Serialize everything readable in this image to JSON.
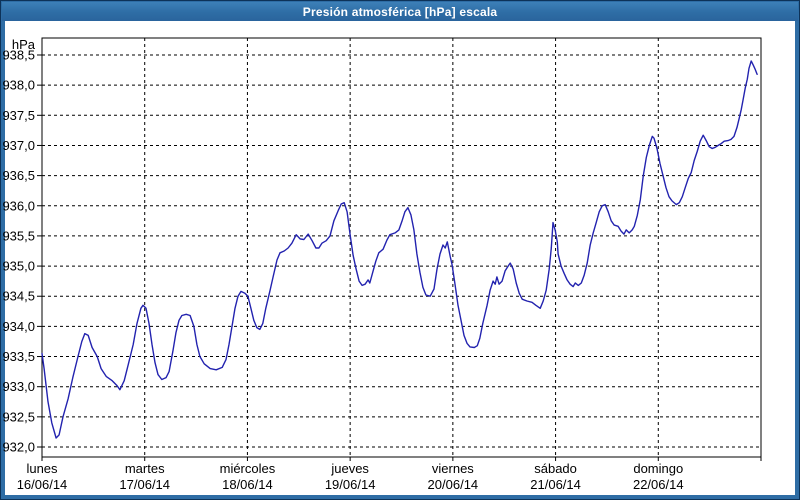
{
  "window": {
    "title": "Presión atmosférica [hPa] escala"
  },
  "colors": {
    "frame": "#2e6da5",
    "frame_outline": "#0d3258",
    "titlebar_text": "#ffffff",
    "plot_background": "#ffffff",
    "grid": "#000000",
    "axis_text": "#000000",
    "line": "#2323af"
  },
  "chart_data": {
    "type": "line",
    "title": "Presión atmosférica [hPa] escala",
    "y_unit_label": "hPa",
    "ylabel": "",
    "xlabel": "",
    "grid": "dashed",
    "legend": "none",
    "ylim": [
      931.83,
      938.78
    ],
    "y_tick_values": [
      938.5,
      938.0,
      937.5,
      937.0,
      936.5,
      936.0,
      935.5,
      935.0,
      934.5,
      934.0,
      933.5,
      933.0,
      932.5,
      932.0
    ],
    "y_tick_labels": [
      "938,5",
      "938,0",
      "937,5",
      "937,0",
      "936,5",
      "936,0",
      "935,5",
      "935,0",
      "934,5",
      "934,0",
      "933,5",
      "933,0",
      "932,5",
      "932,0"
    ],
    "x_total_hours": 168,
    "x_days": [
      {
        "day": "lunes",
        "date": "16/06/14"
      },
      {
        "day": "martes",
        "date": "17/06/14"
      },
      {
        "day": "miércoles",
        "date": "18/06/14"
      },
      {
        "day": "jueves",
        "date": "19/06/14"
      },
      {
        "day": "viernes",
        "date": "20/06/14"
      },
      {
        "day": "sábado",
        "date": "21/06/14"
      },
      {
        "day": "domingo",
        "date": "22/06/14"
      }
    ],
    "line_color": "#2323af",
    "series": [
      {
        "name": "Presión atmosférica",
        "unit": "hPa",
        "points": [
          [
            0,
            933.55
          ],
          [
            0.5,
            933.3
          ],
          [
            1.4,
            932.75
          ],
          [
            2.3,
            932.4
          ],
          [
            3.3,
            932.15
          ],
          [
            4,
            932.2
          ],
          [
            4.9,
            932.5
          ],
          [
            6.1,
            932.8
          ],
          [
            7.2,
            933.15
          ],
          [
            8.4,
            933.5
          ],
          [
            9.3,
            933.75
          ],
          [
            10,
            933.88
          ],
          [
            10.8,
            933.85
          ],
          [
            11.7,
            933.65
          ],
          [
            12.9,
            933.5
          ],
          [
            13.8,
            933.3
          ],
          [
            15,
            933.17
          ],
          [
            16.4,
            933.1
          ],
          [
            17.5,
            933.02
          ],
          [
            18.2,
            932.95
          ],
          [
            19.2,
            933.1
          ],
          [
            20.1,
            933.35
          ],
          [
            21.3,
            933.7
          ],
          [
            22.2,
            934.05
          ],
          [
            23.1,
            934.3
          ],
          [
            23.6,
            934.35
          ],
          [
            24.3,
            934.3
          ],
          [
            25,
            934.05
          ],
          [
            25.7,
            933.7
          ],
          [
            26.4,
            933.4
          ],
          [
            27.1,
            933.2
          ],
          [
            28,
            933.12
          ],
          [
            29,
            933.15
          ],
          [
            29.7,
            933.25
          ],
          [
            30.6,
            933.6
          ],
          [
            31.3,
            933.9
          ],
          [
            32,
            934.1
          ],
          [
            32.7,
            934.18
          ],
          [
            33.7,
            934.2
          ],
          [
            34.6,
            934.18
          ],
          [
            35.5,
            934
          ],
          [
            36.2,
            933.7
          ],
          [
            36.9,
            933.5
          ],
          [
            37.9,
            933.38
          ],
          [
            39.3,
            933.3
          ],
          [
            40.7,
            933.28
          ],
          [
            42.1,
            933.32
          ],
          [
            43,
            933.45
          ],
          [
            43.7,
            933.7
          ],
          [
            44.4,
            934
          ],
          [
            45.1,
            934.3
          ],
          [
            45.8,
            934.5
          ],
          [
            46.5,
            934.58
          ],
          [
            47.4,
            934.55
          ],
          [
            48.1,
            934.5
          ],
          [
            48.8,
            934.3
          ],
          [
            49.5,
            934.1
          ],
          [
            50.2,
            933.98
          ],
          [
            50.9,
            933.95
          ],
          [
            51.6,
            934.05
          ],
          [
            52.3,
            934.3
          ],
          [
            53.3,
            934.6
          ],
          [
            54,
            934.82
          ],
          [
            54.9,
            935.1
          ],
          [
            55.6,
            935.22
          ],
          [
            56.6,
            935.25
          ],
          [
            57.5,
            935.3
          ],
          [
            58.4,
            935.38
          ],
          [
            59.4,
            935.52
          ],
          [
            60.3,
            935.45
          ],
          [
            61.2,
            935.44
          ],
          [
            62.2,
            935.53
          ],
          [
            63.1,
            935.42
          ],
          [
            64,
            935.3
          ],
          [
            64.7,
            935.3
          ],
          [
            65.4,
            935.38
          ],
          [
            66.4,
            935.42
          ],
          [
            67.3,
            935.5
          ],
          [
            68.2,
            935.75
          ],
          [
            69.2,
            935.92
          ],
          [
            69.9,
            936.03
          ],
          [
            70.6,
            936.05
          ],
          [
            71.3,
            935.9
          ],
          [
            72,
            935.52
          ],
          [
            72.7,
            935.18
          ],
          [
            73.4,
            934.95
          ],
          [
            74.1,
            934.75
          ],
          [
            74.8,
            934.68
          ],
          [
            75.5,
            934.7
          ],
          [
            76.2,
            934.77
          ],
          [
            76.6,
            934.72
          ],
          [
            77.3,
            934.9
          ],
          [
            78,
            935.08
          ],
          [
            78.7,
            935.22
          ],
          [
            79.7,
            935.28
          ],
          [
            80.6,
            935.43
          ],
          [
            81.3,
            935.52
          ],
          [
            82.5,
            935.55
          ],
          [
            83.4,
            935.6
          ],
          [
            84.1,
            935.74
          ],
          [
            84.8,
            935.9
          ],
          [
            85.5,
            935.97
          ],
          [
            86.2,
            935.85
          ],
          [
            86.9,
            935.6
          ],
          [
            87.6,
            935.2
          ],
          [
            88.3,
            934.9
          ],
          [
            89,
            934.65
          ],
          [
            89.7,
            934.52
          ],
          [
            90.7,
            934.5
          ],
          [
            91.6,
            934.62
          ],
          [
            92.3,
            934.95
          ],
          [
            93,
            935.2
          ],
          [
            93.7,
            935.35
          ],
          [
            94.2,
            935.3
          ],
          [
            94.7,
            935.4
          ],
          [
            95.4,
            935.15
          ],
          [
            95.8,
            935.03
          ],
          [
            96.5,
            934.7
          ],
          [
            97.2,
            934.35
          ],
          [
            97.9,
            934.1
          ],
          [
            98.6,
            933.85
          ],
          [
            99.3,
            933.72
          ],
          [
            100,
            933.66
          ],
          [
            101,
            933.65
          ],
          [
            101.7,
            933.68
          ],
          [
            102.3,
            933.8
          ],
          [
            103,
            934.05
          ],
          [
            104,
            934.35
          ],
          [
            104.7,
            934.6
          ],
          [
            105.4,
            934.75
          ],
          [
            105.9,
            934.7
          ],
          [
            106.3,
            934.82
          ],
          [
            106.8,
            934.7
          ],
          [
            107.5,
            934.75
          ],
          [
            108.2,
            934.92
          ],
          [
            108.9,
            935
          ],
          [
            109.4,
            935.05
          ],
          [
            110.1,
            934.95
          ],
          [
            110.8,
            934.72
          ],
          [
            111.5,
            934.55
          ],
          [
            112.2,
            934.45
          ],
          [
            113.3,
            934.42
          ],
          [
            114.5,
            934.4
          ],
          [
            115.4,
            934.35
          ],
          [
            116.4,
            934.3
          ],
          [
            117.1,
            934.42
          ],
          [
            117.8,
            934.6
          ],
          [
            118.5,
            934.95
          ],
          [
            119,
            935.3
          ],
          [
            119.4,
            935.72
          ],
          [
            119.9,
            935.6
          ],
          [
            120.4,
            935.4
          ],
          [
            120.6,
            935.2
          ],
          [
            121.3,
            935
          ],
          [
            122,
            934.88
          ],
          [
            122.7,
            934.77
          ],
          [
            123.4,
            934.7
          ],
          [
            124.1,
            934.66
          ],
          [
            124.6,
            934.72
          ],
          [
            125.3,
            934.68
          ],
          [
            126,
            934.72
          ],
          [
            126.7,
            934.85
          ],
          [
            127.4,
            935.05
          ],
          [
            128.1,
            935.35
          ],
          [
            128.8,
            935.55
          ],
          [
            129.5,
            935.72
          ],
          [
            130.2,
            935.9
          ],
          [
            130.9,
            936
          ],
          [
            131.6,
            936.02
          ],
          [
            132.3,
            935.9
          ],
          [
            133,
            935.75
          ],
          [
            133.7,
            935.68
          ],
          [
            134.6,
            935.66
          ],
          [
            135.3,
            935.58
          ],
          [
            136,
            935.53
          ],
          [
            136.5,
            935.6
          ],
          [
            137.2,
            935.55
          ],
          [
            137.9,
            935.6
          ],
          [
            138.4,
            935.66
          ],
          [
            139.1,
            935.84
          ],
          [
            139.8,
            936.1
          ],
          [
            140.5,
            936.5
          ],
          [
            141.2,
            936.8
          ],
          [
            141.9,
            937
          ],
          [
            142.6,
            937.15
          ],
          [
            143,
            937.12
          ],
          [
            143.7,
            936.95
          ],
          [
            144.4,
            936.7
          ],
          [
            145.1,
            936.5
          ],
          [
            145.8,
            936.3
          ],
          [
            146.5,
            936.15
          ],
          [
            147.2,
            936.08
          ],
          [
            148.2,
            936.02
          ],
          [
            148.9,
            936.05
          ],
          [
            149.6,
            936.15
          ],
          [
            150.3,
            936.3
          ],
          [
            151,
            936.45
          ],
          [
            151.7,
            936.55
          ],
          [
            152.4,
            936.75
          ],
          [
            153.1,
            936.9
          ],
          [
            153.8,
            937.07
          ],
          [
            154.5,
            937.17
          ],
          [
            155.2,
            937.08
          ],
          [
            155.9,
            936.98
          ],
          [
            156.6,
            936.95
          ],
          [
            157.3,
            936.97
          ],
          [
            158,
            937
          ],
          [
            158.7,
            937.03
          ],
          [
            159.4,
            937.07
          ],
          [
            160.3,
            937.08
          ],
          [
            161,
            937.1
          ],
          [
            161.7,
            937.15
          ],
          [
            162.4,
            937.3
          ],
          [
            162.9,
            937.45
          ],
          [
            163.4,
            937.6
          ],
          [
            163.8,
            937.75
          ],
          [
            164.3,
            937.95
          ],
          [
            164.8,
            938.1
          ],
          [
            165.2,
            938.28
          ],
          [
            165.7,
            938.4
          ],
          [
            166.2,
            938.33
          ],
          [
            166.6,
            938.27
          ],
          [
            167.1,
            938.18
          ]
        ]
      }
    ]
  }
}
